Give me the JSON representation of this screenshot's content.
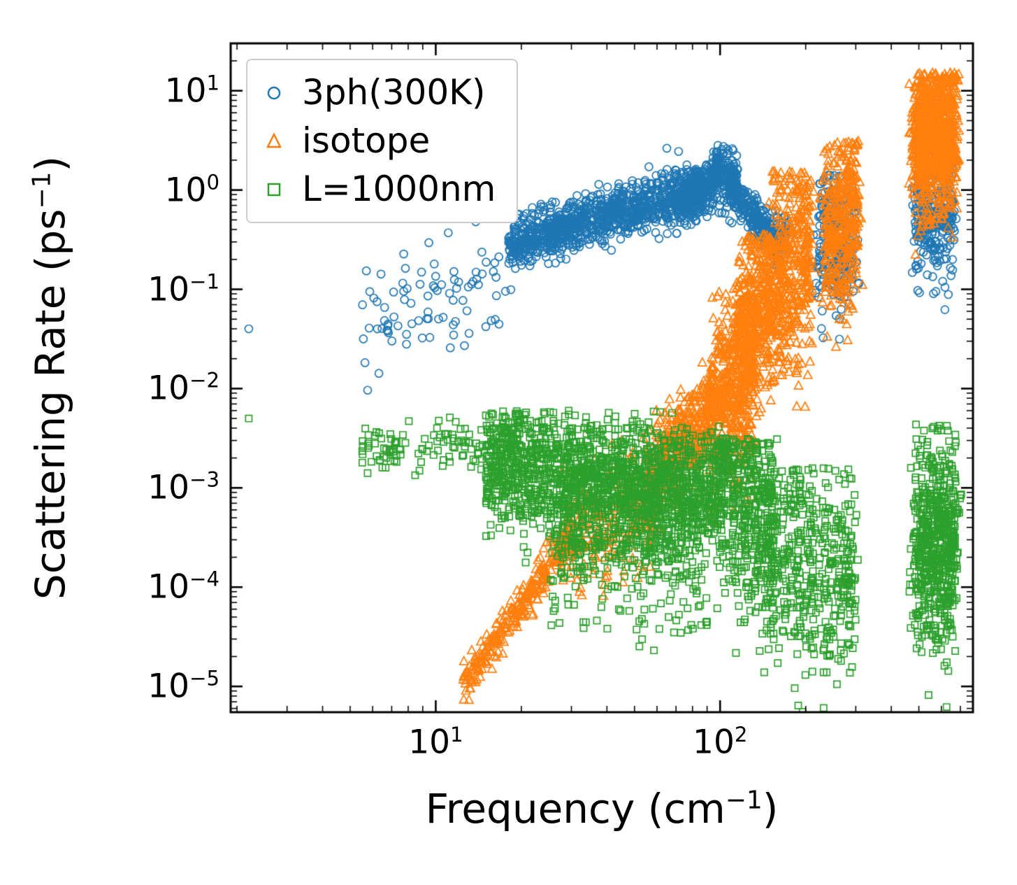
{
  "chart_data": {
    "type": "scatter",
    "title": "",
    "xlabel": "Frequency (cm^{−1})",
    "ylabel": "Scattering Rate (ps^{−1})",
    "x_scale": "log",
    "y_scale": "log",
    "xlim": [
      1.9,
      775
    ],
    "ylim": [
      5.5e-06,
      30
    ],
    "grid": false,
    "legend_position": "upper-left",
    "x_ticks": [
      {
        "value": 10,
        "label": "10^{1}"
      },
      {
        "value": 100,
        "label": "10^{2}"
      }
    ],
    "y_ticks": [
      {
        "value": 10,
        "label": "10^{1}"
      },
      {
        "value": 1,
        "label": "10^{0}"
      },
      {
        "value": 0.1,
        "label": "10^{−1}"
      },
      {
        "value": 0.01,
        "label": "10^{−2}"
      },
      {
        "value": 0.001,
        "label": "10^{−3}"
      },
      {
        "value": 0.0001,
        "label": "10^{−4}"
      },
      {
        "value": 1e-05,
        "label": "10^{−5}"
      }
    ],
    "series": [
      {
        "name": "3ph(300K)",
        "marker": "circle",
        "color": "#1f77b4",
        "clusters": [
          {
            "points": [
              [
                2.2,
                0.04
              ]
            ]
          },
          {
            "n": 90,
            "x": [
              5.5,
              19
            ],
            "logy": [
              -1.35,
              -0.85
            ],
            "spread": 0.3
          },
          {
            "n": 1100,
            "x": [
              18,
              95
            ],
            "logy": [
              -0.55,
              0.05
            ],
            "spread": 0.13
          },
          {
            "n": 250,
            "x": [
              70,
              100
            ],
            "logy": [
              -0.2,
              0.18
            ],
            "spread": 0.12
          },
          {
            "n": 150,
            "x": [
              96,
              116
            ],
            "logy": [
              0.15,
              0.1
            ],
            "spread": 0.14,
            "ymax": 0.45
          },
          {
            "n": 220,
            "x": [
              108,
              150
            ],
            "logy": [
              0.05,
              -0.45
            ],
            "spread": 0.1
          },
          {
            "n": 90,
            "cols": [
              155,
              168
            ],
            "jitter": 0.012,
            "logy": [
              -0.5,
              -0.45
            ],
            "spread": 0.12
          },
          {
            "n": 260,
            "cols": [
              228,
              248,
              268,
              290
            ],
            "jitter": 0.012,
            "logy": [
              -0.55,
              -0.5
            ],
            "spread": 0.33,
            "ymax": 0.18
          },
          {
            "n": 280,
            "cols": [
              500,
              545,
              590,
              640
            ],
            "jitter": 0.012,
            "logy": [
              -0.25,
              -0.3
            ],
            "spread": 0.3,
            "ymax": 0.45
          }
        ]
      },
      {
        "name": "isotope",
        "marker": "triangle",
        "color": "#ff7f0e",
        "clusters": [
          {
            "n": 280,
            "x": [
              12.5,
              30
            ],
            "logy": [
              -5.0,
              -3.45
            ],
            "spread": 0.1
          },
          {
            "n": 220,
            "x": [
              28,
              58
            ],
            "logy": [
              -3.5,
              -3.1
            ],
            "spread": 0.3
          },
          {
            "n": 420,
            "x": [
              55,
              95
            ],
            "logy": [
              -3.0,
              -2.15
            ],
            "spread": 0.25
          },
          {
            "n": 450,
            "x": [
              93,
              132
            ],
            "logy": [
              -2.3,
              -1.7
            ],
            "spread": 0.45,
            "ymax": -0.5
          },
          {
            "n": 380,
            "cols": [
              118,
              127,
              137,
              146
            ],
            "jitter": 0.01,
            "logy": [
              -1.5,
              -1.1
            ],
            "spread": 0.45,
            "ymax": -0.45
          },
          {
            "n": 480,
            "cols": [
              152,
              163,
              176,
              190,
              203
            ],
            "jitter": 0.01,
            "logy": [
              -1.0,
              -0.6
            ],
            "spread": 0.5,
            "ymax": 0.2
          },
          {
            "n": 380,
            "cols": [
              238,
              255,
              270,
              285,
              298
            ],
            "jitter": 0.01,
            "logy": [
              -0.5,
              -0.2
            ],
            "spread": 0.45,
            "ymax": 0.5
          },
          {
            "n": 820,
            "cols": [
              495,
              520,
              550,
              585,
              620,
              655
            ],
            "jitter": 0.012,
            "logy": [
              0.5,
              0.6
            ],
            "spread": 0.38,
            "ymax": 1.18
          }
        ]
      },
      {
        "name": "L=1000nm",
        "marker": "square",
        "color": "#2ca02c",
        "clusters": [
          {
            "points": [
              [
                2.2,
                0.005
              ]
            ]
          },
          {
            "n": 130,
            "x": [
              5.5,
              20
            ],
            "logy": [
              -2.62,
              -2.55
            ],
            "spread": 0.12,
            "ymax": -2.25
          },
          {
            "n": 1400,
            "x": [
              15,
              100
            ],
            "logy": [
              -2.75,
              -3.05
            ],
            "spread": 0.3,
            "ymax": -2.22
          },
          {
            "n": 550,
            "x": [
              25,
              92
            ],
            "logy": [
              -3.4,
              -3.5
            ],
            "spread": 0.45,
            "ymax": -2.5
          },
          {
            "n": 480,
            "cols": [
              102,
              112,
              123,
              135,
              148
            ],
            "jitter": 0.012,
            "logy": [
              -3.0,
              -3.4
            ],
            "spread": 0.55,
            "ymax": -2.5
          },
          {
            "n": 470,
            "cols": [
              155,
              170,
              188,
              210,
              235,
              260,
              285
            ],
            "jitter": 0.012,
            "logy": [
              -3.6,
              -3.9
            ],
            "spread": 0.55,
            "ymax": -2.8
          },
          {
            "n": 620,
            "cols": [
              495,
              525,
              555,
              590,
              625,
              660
            ],
            "jitter": 0.012,
            "logy": [
              -3.5,
              -3.6
            ],
            "spread": 0.5,
            "ymax": -2.35
          }
        ]
      }
    ]
  },
  "colors": {
    "axis": "#000000",
    "legend_border": "#cccccc",
    "background": "#ffffff"
  }
}
